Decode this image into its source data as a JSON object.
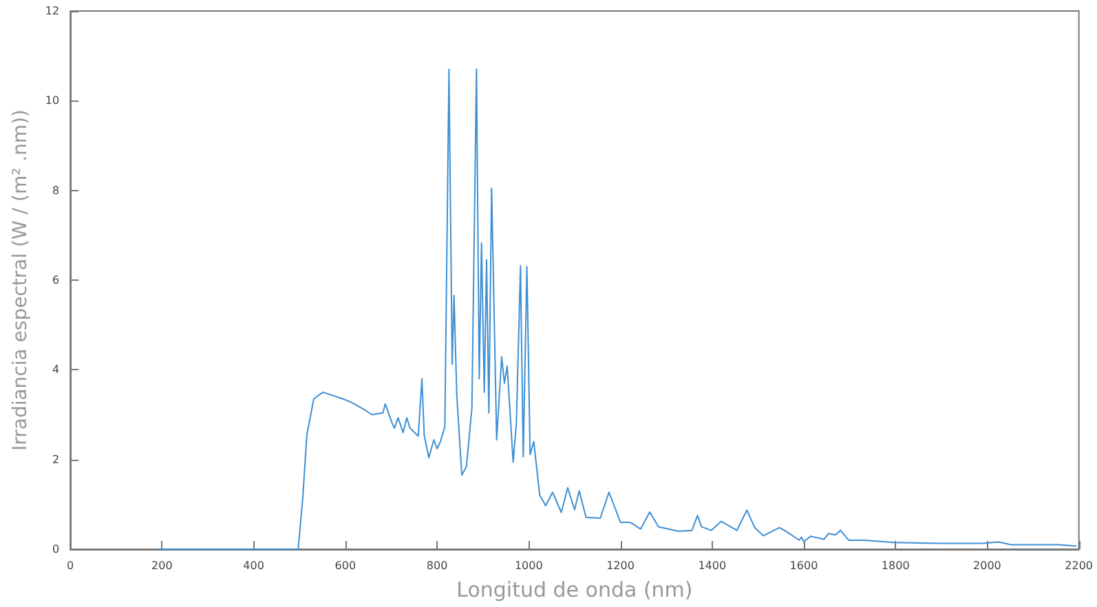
{
  "chart_data": {
    "type": "line",
    "xlabel": "Longitud de onda (nm)",
    "ylabel": "Irradiancia espectral (W / (m² .nm))",
    "xlim": [
      0,
      2200
    ],
    "xticks": [
      0,
      200,
      400,
      600,
      800,
      1000,
      1200,
      1400,
      1600,
      1800,
      2000,
      2200
    ],
    "ylim": [
      0,
      12
    ],
    "yticks": [
      0,
      2,
      4,
      6,
      8,
      10,
      12
    ],
    "grid": false,
    "marker": "none",
    "line_style": "solid",
    "series": [
      {
        "color": "#3d8fd4",
        "x": [
          190,
          300,
          400,
          497,
          507,
          516,
          531,
          551,
          595,
          614,
          643,
          658,
          682,
          687,
          702,
          707,
          715,
          726,
          734,
          741,
          759,
          767,
          772,
          782,
          793,
          800,
          807,
          817,
          826,
          833,
          837,
          843,
          854,
          864,
          876,
          886,
          892,
          897,
          903,
          908,
          913,
          919,
          930,
          941,
          947,
          953,
          966,
          973,
          982,
          988,
          996,
          1003,
          1011,
          1024,
          1037,
          1052,
          1071,
          1085,
          1100,
          1110,
          1125,
          1156,
          1175,
          1200,
          1221,
          1244,
          1264,
          1283,
          1327,
          1356,
          1368,
          1377,
          1398,
          1420,
          1454,
          1476,
          1493,
          1512,
          1547,
          1561,
          1590,
          1595,
          1600,
          1615,
          1644,
          1654,
          1669,
          1680,
          1698,
          1732,
          1796,
          1893,
          1991,
          2025,
          2052,
          2157,
          2195
        ],
        "values": [
          0,
          0,
          0,
          0,
          1.13,
          2.55,
          3.35,
          3.5,
          3.35,
          3.27,
          3.1,
          3.0,
          3.04,
          3.24,
          2.81,
          2.7,
          2.93,
          2.6,
          2.93,
          2.7,
          2.52,
          3.8,
          2.54,
          2.04,
          2.44,
          2.24,
          2.39,
          2.73,
          10.7,
          4.12,
          5.66,
          3.45,
          1.65,
          1.84,
          3.14,
          10.7,
          3.8,
          6.83,
          3.5,
          6.45,
          3.04,
          8.05,
          2.44,
          4.29,
          3.7,
          4.08,
          1.94,
          2.8,
          6.32,
          2.06,
          6.3,
          2.11,
          2.4,
          1.2,
          0.97,
          1.27,
          0.82,
          1.37,
          0.88,
          1.3,
          0.71,
          0.69,
          1.27,
          0.6,
          0.6,
          0.45,
          0.83,
          0.5,
          0.4,
          0.42,
          0.75,
          0.5,
          0.42,
          0.62,
          0.42,
          0.87,
          0.48,
          0.3,
          0.48,
          0.4,
          0.2,
          0.27,
          0.17,
          0.29,
          0.22,
          0.35,
          0.32,
          0.42,
          0.2,
          0.2,
          0.15,
          0.13,
          0.13,
          0.16,
          0.1,
          0.1,
          0.07
        ]
      }
    ]
  }
}
